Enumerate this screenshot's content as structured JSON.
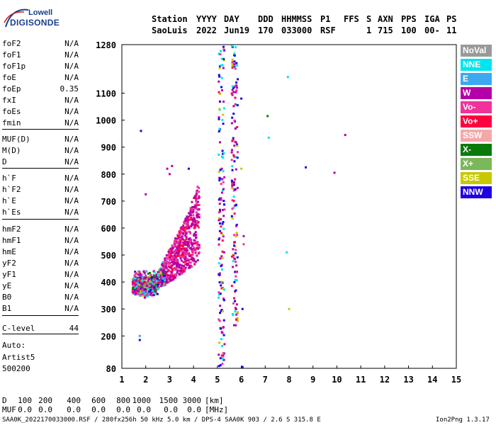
{
  "logo": {
    "line1": "Lowell",
    "line2": "DIGISONDE"
  },
  "header": {
    "labels": [
      "Station",
      "YYYY",
      "DAY",
      "DDD",
      "HHMMSS",
      "P1",
      "FFS",
      "S",
      "AXN",
      "PPS",
      "IGA",
      "PS"
    ],
    "values": [
      "SaoLuis",
      "2022",
      "Jun19",
      "170",
      "033000",
      "RSF",
      "1",
      "715",
      "100",
      "00-",
      "11"
    ]
  },
  "params": [
    {
      "name": "foF2",
      "value": "N/A"
    },
    {
      "name": "foF1",
      "value": "N/A"
    },
    {
      "name": "foF1p",
      "value": "N/A"
    },
    {
      "name": "foE",
      "value": "N/A"
    },
    {
      "name": "foEp",
      "value": "0.35"
    },
    {
      "name": "fxI",
      "value": "N/A"
    },
    {
      "name": "foEs",
      "value": "N/A"
    },
    {
      "name": "fmin",
      "value": "N/A"
    },
    {
      "name": "MUF(D)",
      "value": "N/A"
    },
    {
      "name": "M(D)",
      "value": "N/A"
    },
    {
      "name": "D",
      "value": "N/A"
    },
    {
      "name": "h`F",
      "value": "N/A"
    },
    {
      "name": "h`F2",
      "value": "N/A"
    },
    {
      "name": "h`E",
      "value": "N/A"
    },
    {
      "name": "h`Es",
      "value": "N/A"
    },
    {
      "name": "hmF2",
      "value": "N/A"
    },
    {
      "name": "hmF1",
      "value": "N/A"
    },
    {
      "name": "hmE",
      "value": "N/A"
    },
    {
      "name": "yF2",
      "value": "N/A"
    },
    {
      "name": "yF1",
      "value": "N/A"
    },
    {
      "name": "yE",
      "value": "N/A"
    },
    {
      "name": "B0",
      "value": "N/A"
    },
    {
      "name": "B1",
      "value": "N/A"
    },
    {
      "name": "C-level",
      "value": "44"
    }
  ],
  "auto": [
    "Auto:",
    "Artist5",
    "500200"
  ],
  "legend": [
    {
      "label": "NoVal",
      "color": "#999999"
    },
    {
      "label": "NNE",
      "color": "#00e5ee"
    },
    {
      "label": "E",
      "color": "#3ca8f0"
    },
    {
      "label": "W",
      "color": "#b400a8"
    },
    {
      "label": "Vo-",
      "color": "#f0329b"
    },
    {
      "label": "Vo+",
      "color": "#ff0040"
    },
    {
      "label": "SSW",
      "color": "#f4a8a8"
    },
    {
      "label": "X-",
      "color": "#0a7a0a"
    },
    {
      "label": "X+",
      "color": "#7bb85a"
    },
    {
      "label": "SSE",
      "color": "#c8c800"
    },
    {
      "label": "NNW",
      "color": "#1e00e0"
    }
  ],
  "bottom": {
    "d_label": "D",
    "d_values": [
      "100",
      "200",
      "400",
      "600",
      "800",
      "1000",
      "1500",
      "3000"
    ],
    "d_unit": "[km]",
    "muf_label": "MUF",
    "muf_values": [
      "0.0",
      "0.0",
      "0.0",
      "0.0",
      "0.0",
      "0.0",
      "0.0",
      "0.0"
    ],
    "muf_unit": "[MHz]"
  },
  "footer": {
    "left": "SAA0K_2022170033000.RSF / 280fx256h 50 kHz 5.0 km / DPS-4 SAA0K 903 / 2.6 S 315.8 E",
    "right": "Ion2Png 1.3.17"
  },
  "chart_data": {
    "type": "scatter",
    "xlim": [
      1,
      15
    ],
    "ylim": [
      80,
      1280
    ],
    "x_ticks": [
      1,
      2,
      3,
      4,
      5,
      6,
      7,
      8,
      9,
      10,
      11,
      12,
      13,
      14,
      15
    ],
    "y_ticks": [
      80,
      200,
      300,
      400,
      500,
      600,
      700,
      800,
      900,
      1000,
      1100,
      1280
    ],
    "grid": false,
    "legend_position": "right",
    "clusters": [
      {
        "desc": "F-layer trace",
        "x_range": [
          1.4,
          4.3
        ],
        "y_range": [
          310,
          750
        ],
        "dominant": [
          "W",
          "Vo-",
          "Vo+"
        ]
      },
      {
        "desc": "vertical streak near 5 MHz",
        "x_range": [
          5.0,
          5.3
        ],
        "y_range": [
          80,
          1280
        ],
        "dominant": [
          "W",
          "NNW"
        ]
      },
      {
        "desc": "vertical streak near 5.7 MHz",
        "x_range": [
          5.6,
          5.9
        ],
        "y_range": [
          230,
          1280
        ],
        "dominant": [
          "W",
          "NNW"
        ]
      }
    ],
    "points": [
      {
        "x": 1.8,
        "y": 960,
        "s": "NNW"
      },
      {
        "x": 2.0,
        "y": 725,
        "s": "W"
      },
      {
        "x": 2.9,
        "y": 820,
        "s": "W"
      },
      {
        "x": 3.0,
        "y": 800,
        "s": "W"
      },
      {
        "x": 3.1,
        "y": 830,
        "s": "W"
      },
      {
        "x": 3.8,
        "y": 820,
        "s": "NNW"
      },
      {
        "x": 1.75,
        "y": 200,
        "s": "E"
      },
      {
        "x": 1.75,
        "y": 185,
        "s": "NNW"
      },
      {
        "x": 5.25,
        "y": 770,
        "s": "Vo-"
      },
      {
        "x": 5.1,
        "y": 690,
        "s": "W"
      },
      {
        "x": 6.0,
        "y": 1080,
        "s": "NNW"
      },
      {
        "x": 6.1,
        "y": 570,
        "s": "W"
      },
      {
        "x": 6.1,
        "y": 540,
        "s": "Vo-"
      },
      {
        "x": 6.0,
        "y": 820,
        "s": "SSE"
      },
      {
        "x": 6.05,
        "y": 300,
        "s": "NNW"
      },
      {
        "x": 6.05,
        "y": 85,
        "s": "NNW"
      },
      {
        "x": 7.1,
        "y": 1015,
        "s": "X-"
      },
      {
        "x": 7.15,
        "y": 935,
        "s": "NNE"
      },
      {
        "x": 7.9,
        "y": 510,
        "s": "NNE"
      },
      {
        "x": 7.95,
        "y": 1160,
        "s": "NNE"
      },
      {
        "x": 8.0,
        "y": 300,
        "s": "SSE"
      },
      {
        "x": 8.7,
        "y": 825,
        "s": "NNW"
      },
      {
        "x": 9.9,
        "y": 805,
        "s": "W"
      },
      {
        "x": 10.35,
        "y": 945,
        "s": "W"
      }
    ]
  }
}
